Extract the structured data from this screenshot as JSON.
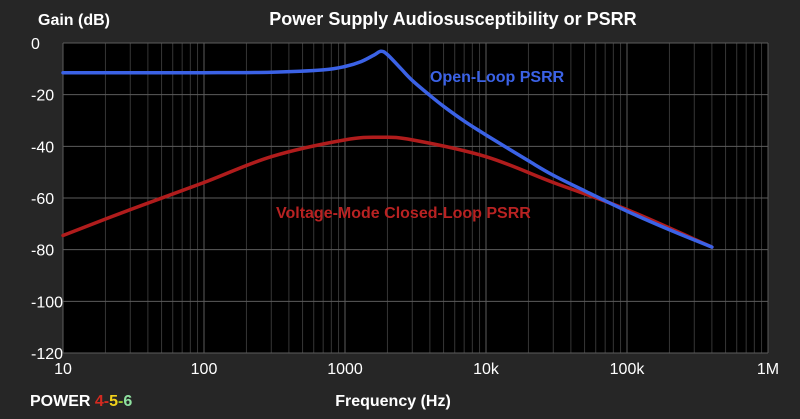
{
  "brand": {
    "prefix": "POWER ",
    "parts": [
      {
        "text": "4",
        "color": "#d42a20"
      },
      {
        "text": "-",
        "color": "#d42a20"
      },
      {
        "text": "5",
        "color": "#f2d21b"
      },
      {
        "text": "-",
        "color": "#9acd32"
      },
      {
        "text": "6",
        "color": "#8fe0a0"
      }
    ]
  },
  "colors": {
    "background": "#262626",
    "plot_background": "#000000",
    "grid_major": "#5c5c5c",
    "grid_minor": "#363636",
    "open_loop": "#3b62e6",
    "closed_loop": "#b01c1c",
    "closed_loop_label": "#b82222"
  },
  "chart_data": {
    "type": "line",
    "title": "Power Supply Audiosusceptibility or PSRR",
    "xlabel": "Frequency (Hz)",
    "ylabel": "Gain (dB)",
    "xscale": "log",
    "xlim": [
      10,
      1000000
    ],
    "ylim": [
      -120,
      0
    ],
    "xticks": [
      10,
      100,
      1000,
      10000,
      100000,
      1000000
    ],
    "xtick_labels": [
      "10",
      "100",
      "1000",
      "10k",
      "100k",
      "1M"
    ],
    "yticks": [
      0,
      -20,
      -40,
      -60,
      -80,
      -100,
      -120
    ],
    "ytick_labels": [
      "0",
      "-20",
      "-40",
      "-60",
      "-80",
      "-100",
      "-120"
    ],
    "grid": true,
    "series": [
      {
        "name": "Open-Loop PSRR",
        "x": [
          10,
          100,
          300,
          700,
          1000,
          1300,
          1600,
          1800,
          2000,
          2500,
          3000,
          4000,
          5000,
          7000,
          10000,
          20000,
          30000,
          50000,
          100000,
          200000,
          400000
        ],
        "y": [
          -11.5,
          -11.5,
          -11.3,
          -10.4,
          -9.1,
          -7.2,
          -4.7,
          -3.2,
          -4.5,
          -10,
          -14.5,
          -20.3,
          -24.5,
          -30.2,
          -35.6,
          -45.6,
          -51.2,
          -57.2,
          -65.1,
          -72.3,
          -79
        ]
      },
      {
        "name": "Voltage-Mode Closed-Loop PSRR",
        "x": [
          10,
          30,
          100,
          300,
          1000,
          1800,
          3000,
          10000,
          30000,
          100000,
          400000
        ],
        "y": [
          -74.5,
          -64.5,
          -54,
          -44,
          -37.5,
          -36.5,
          -37.5,
          -44,
          -54,
          -64.5,
          -79
        ]
      }
    ]
  }
}
